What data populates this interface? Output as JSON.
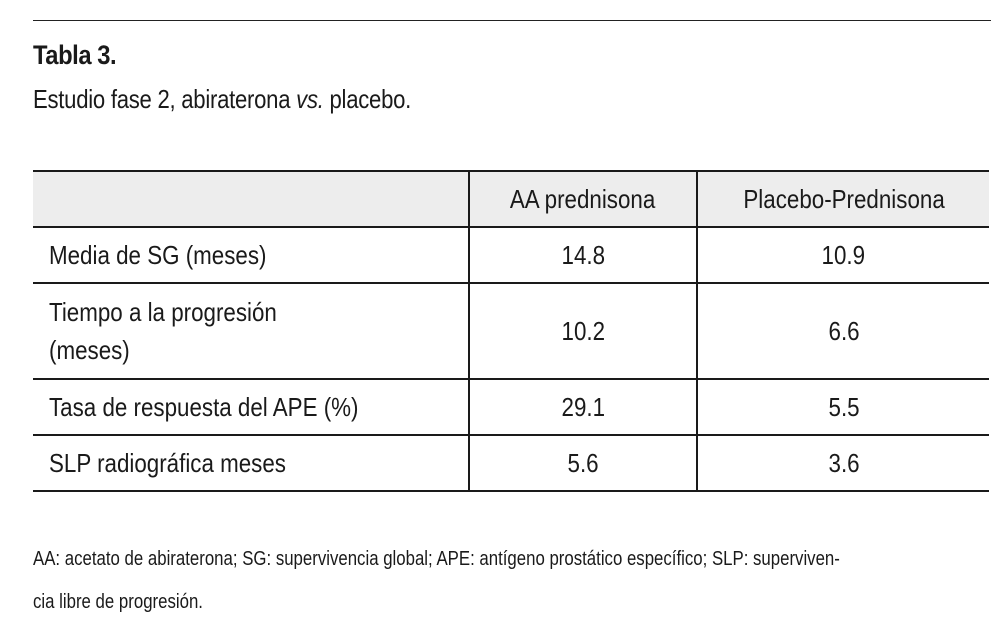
{
  "table": {
    "title": "Tabla 3.",
    "subtitle_prefix": "Estudio fase 2, abiraterona ",
    "subtitle_vs": "vs.",
    "subtitle_suffix": " placebo.",
    "columns": [
      "",
      "AA prednisona",
      "Placebo-Prednisona"
    ],
    "rows": [
      {
        "label_lines": [
          "Media de SG (meses)"
        ],
        "values": [
          "14.8",
          "10.9"
        ]
      },
      {
        "label_lines": [
          "Tiempo a la progresión",
          "(meses)"
        ],
        "values": [
          "10.2",
          "6.6"
        ]
      },
      {
        "label_lines": [
          "Tasa de respuesta del APE (%)"
        ],
        "values": [
          "29.1",
          "5.5"
        ]
      },
      {
        "label_lines": [
          "SLP radiográfica meses"
        ],
        "values": [
          "5.6",
          "3.6"
        ]
      }
    ],
    "footnote_line1": "AA: acetato de abiraterona; SG: supervivencia global; APE: antígeno prostático específico; SLP: superviven-",
    "footnote_line2": "cia libre de progresión."
  }
}
